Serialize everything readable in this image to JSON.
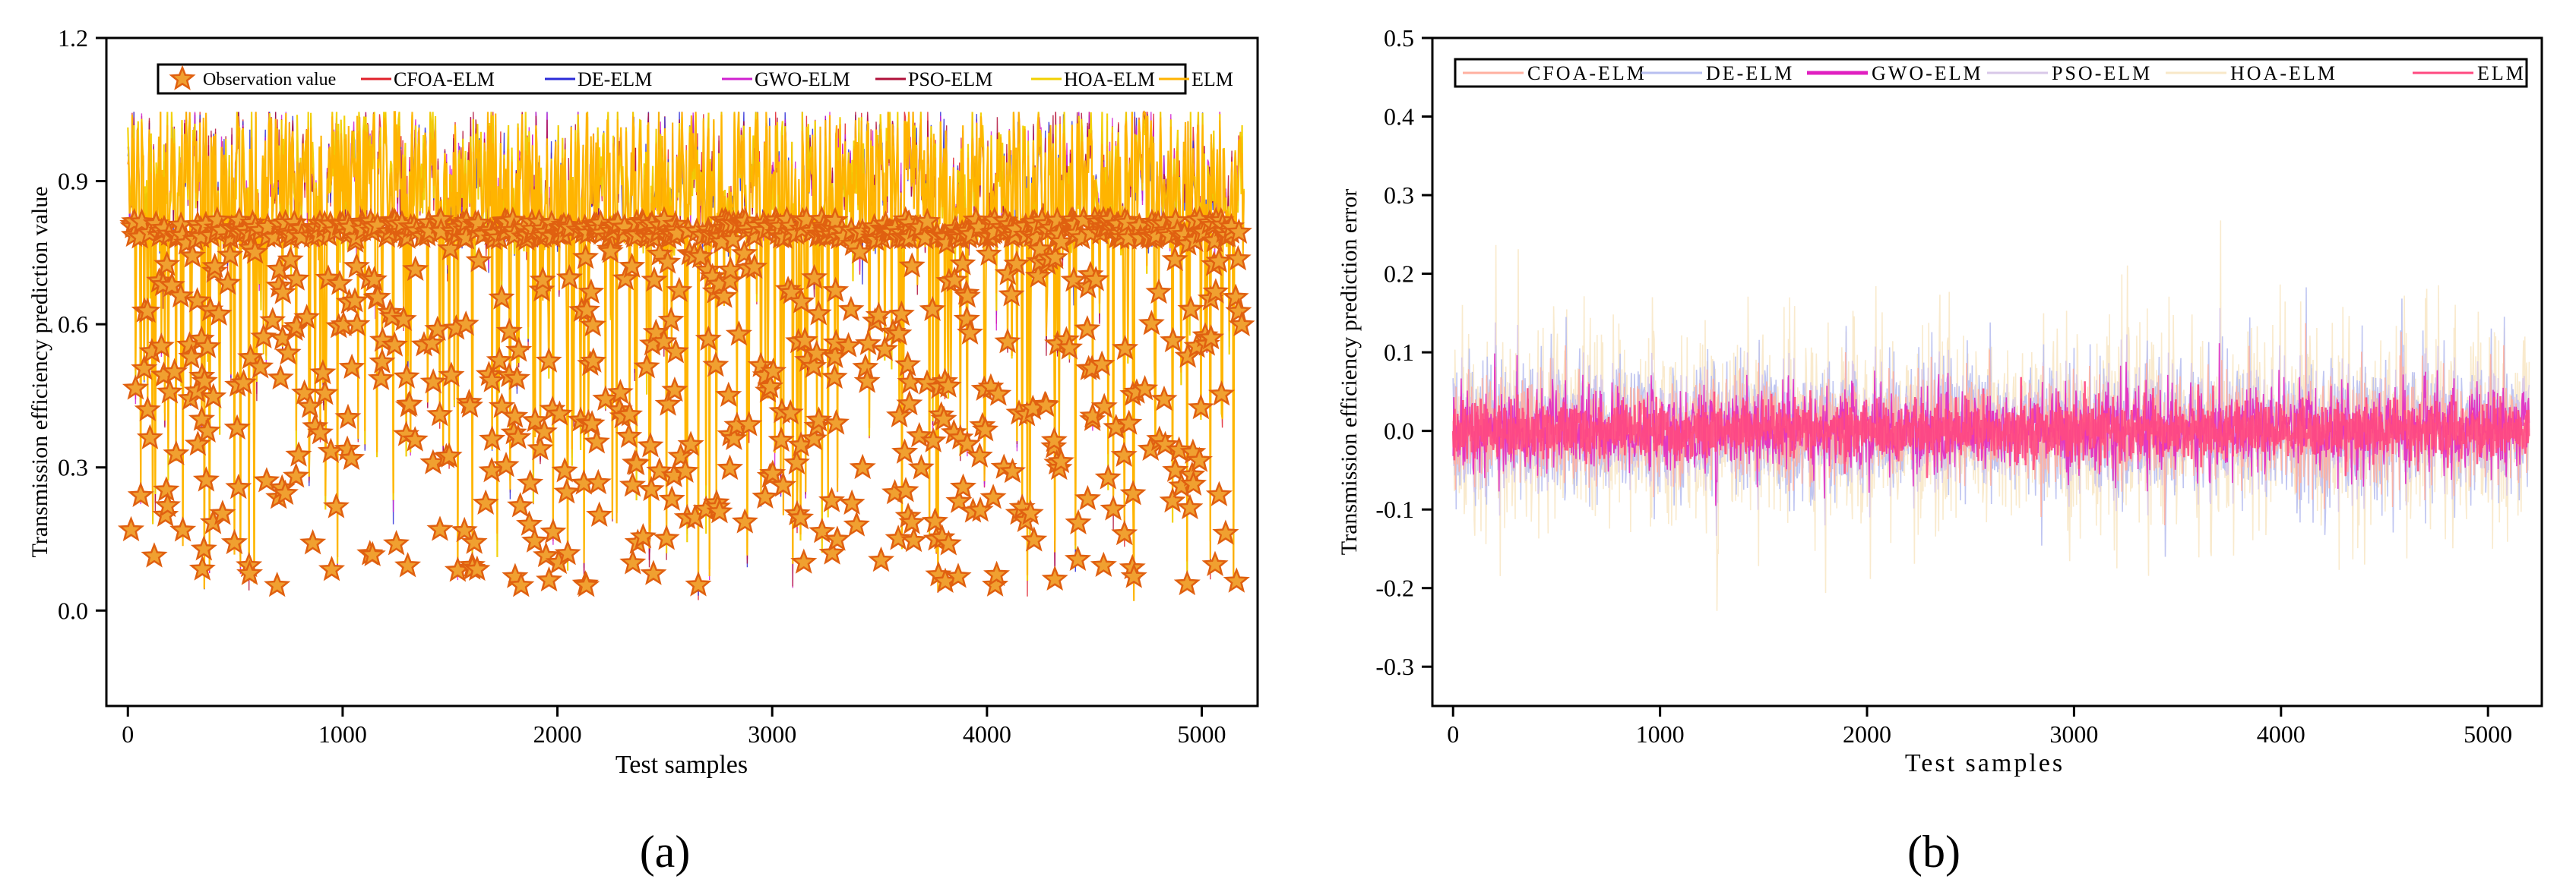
{
  "chart_data": [
    {
      "panel_label": "(a)",
      "type": "line",
      "title": "",
      "xlabel": "Test samples",
      "ylabel": "Transmission efficiency prediction value",
      "xlim": [
        -100,
        5260
      ],
      "ylim": [
        -0.2,
        1.2
      ],
      "xticks": [
        "0",
        "1000",
        "2000",
        "3000",
        "4000",
        "5000"
      ],
      "yticks": [
        "0.0",
        "0.3",
        "0.6",
        "0.9",
        "1.2"
      ],
      "xtick_values": [
        0,
        1000,
        2000,
        3000,
        4000,
        5000
      ],
      "ytick_values": [
        0.0,
        0.3,
        0.6,
        0.9,
        1.2
      ],
      "grid": false,
      "legend_position": "top",
      "n_samples": 5200,
      "series": [
        {
          "name": "Observation value",
          "marker": "star",
          "color": "#f0a030",
          "stroke": "#e06010"
        },
        {
          "name": "CFOA-ELM",
          "color": "#e0202a"
        },
        {
          "name": "DE-ELM",
          "color": "#2b2bd8"
        },
        {
          "name": "GWO-ELM",
          "color": "#d020d0"
        },
        {
          "name": "PSO-ELM",
          "color": "#b0103a"
        },
        {
          "name": "HOA-ELM",
          "color": "#f2d000"
        },
        {
          "name": "ELM",
          "color": "#ffb300"
        }
      ]
    },
    {
      "panel_label": "(b)",
      "type": "line",
      "title": "",
      "xlabel": "Test samples",
      "ylabel": "Transmission efficiency prediction error",
      "xlim": [
        -100,
        5260
      ],
      "ylim": [
        -0.35,
        0.5
      ],
      "xticks": [
        "0",
        "1000",
        "2000",
        "3000",
        "4000",
        "5000"
      ],
      "yticks": [
        "-0.3",
        "-0.2",
        "-0.1",
        "0.0",
        "0.1",
        "0.2",
        "0.3",
        "0.4",
        "0.5"
      ],
      "xtick_values": [
        0,
        1000,
        2000,
        3000,
        4000,
        5000
      ],
      "ytick_values": [
        -0.3,
        -0.2,
        -0.1,
        0.0,
        0.1,
        0.2,
        0.3,
        0.4,
        0.5
      ],
      "grid": false,
      "legend_position": "top",
      "n_samples": 5200,
      "series": [
        {
          "name": "CFOA-ELM",
          "color": "#ffb0a0",
          "spread": 0.06
        },
        {
          "name": "DE-ELM",
          "color": "#b8bff0",
          "spread": 0.08
        },
        {
          "name": "GWO-ELM",
          "color": "#e020c0",
          "spread": 0.05
        },
        {
          "name": "PSO-ELM",
          "color": "#d8c8e8",
          "spread": 0.07
        },
        {
          "name": "HOA-ELM",
          "color": "#f8e8c8",
          "spread": 0.12
        },
        {
          "name": "ELM",
          "color": "#ff4a80",
          "spread": 0.03
        }
      ]
    }
  ]
}
